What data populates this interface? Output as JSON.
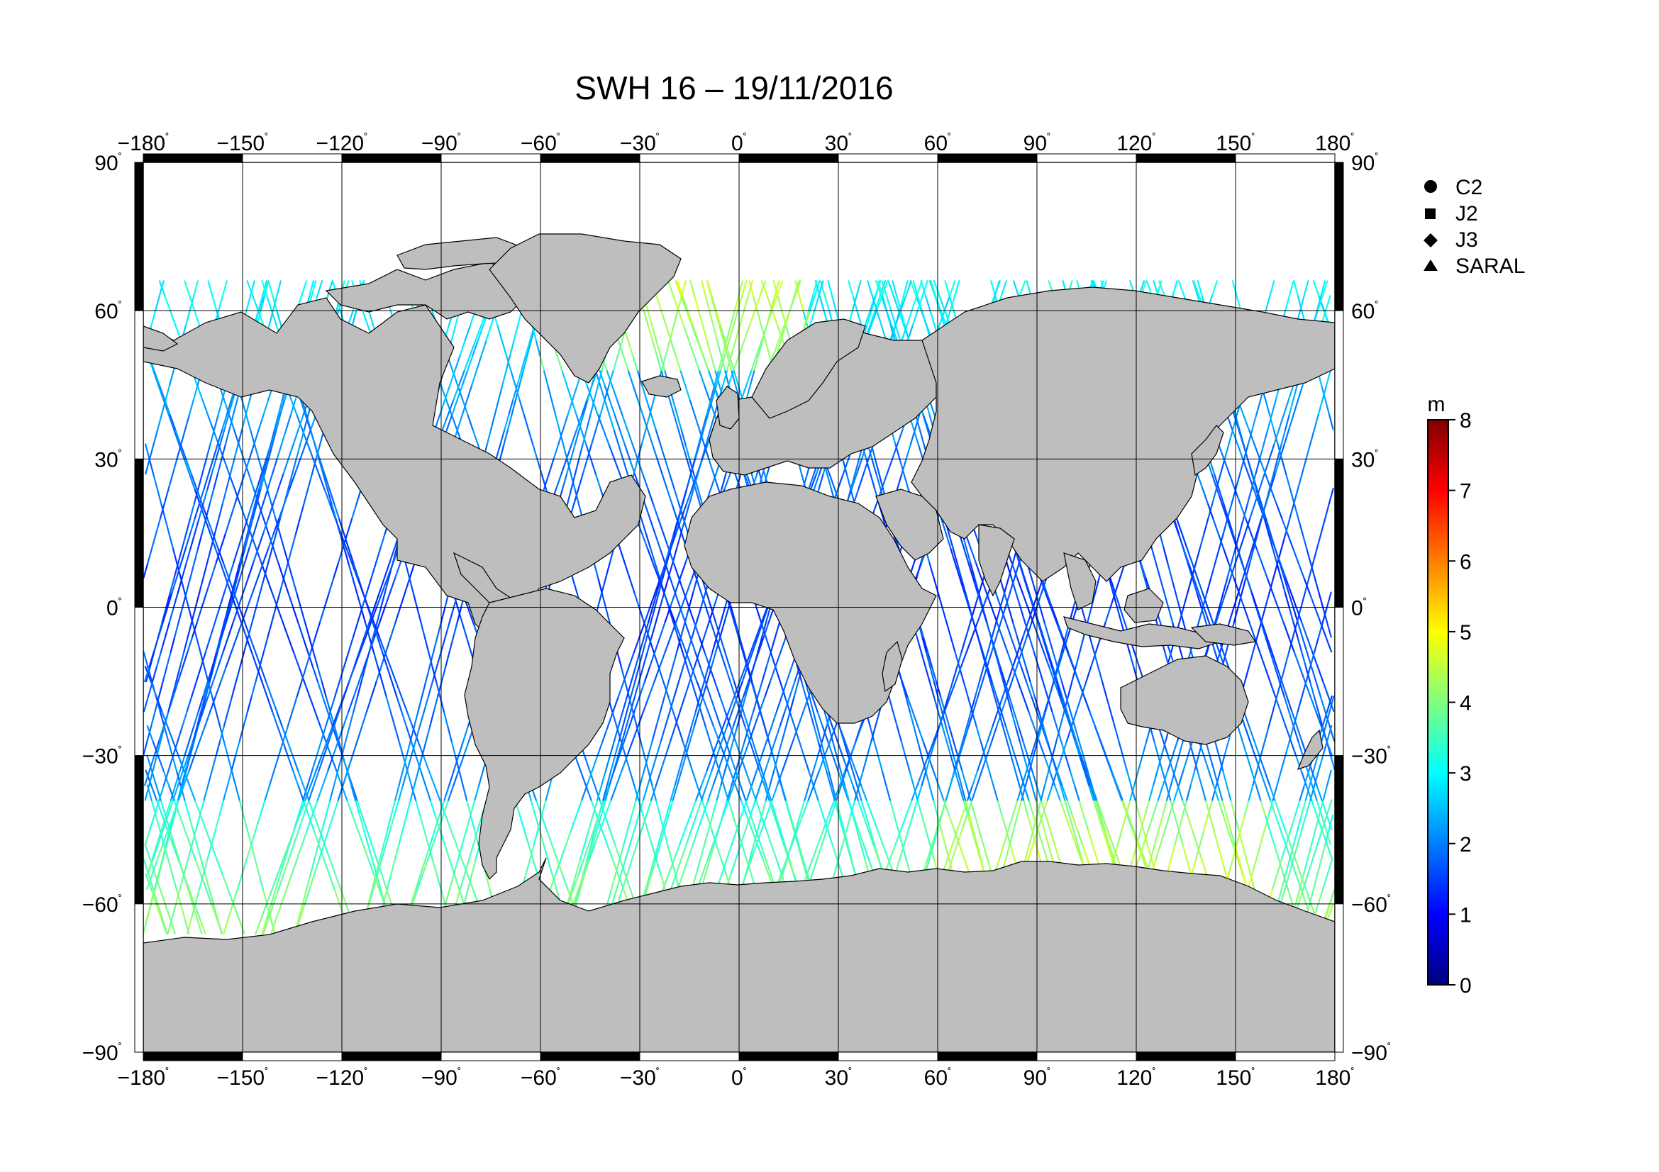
{
  "title": "SWH 16 – 19/11/2016",
  "map": {
    "lon_range": [
      -180,
      180
    ],
    "lat_range": [
      -90,
      90
    ],
    "lon_ticks": [
      "−180",
      "−150",
      "−120",
      "−90",
      "−60",
      "−30",
      "0",
      "30",
      "60",
      "90",
      "120",
      "150",
      "180"
    ],
    "lat_ticks": [
      "90",
      "60",
      "30",
      "0",
      "−30",
      "−60",
      "−90"
    ],
    "lat_tick_values": [
      90,
      60,
      30,
      0,
      -30,
      -60,
      -90
    ],
    "degree_symbol": "˚",
    "land_color": "#bebebe",
    "ocean_color": "#ffffff",
    "grid": true
  },
  "legend": {
    "placement": "top-right",
    "items": [
      {
        "label": "C2",
        "symbol": "circle"
      },
      {
        "label": "J2",
        "symbol": "square"
      },
      {
        "label": "J3",
        "symbol": "diamond"
      },
      {
        "label": "SARAL",
        "symbol": "triangle"
      }
    ]
  },
  "colorbar": {
    "unit": "m",
    "min": 0,
    "max": 8,
    "tick_labels": [
      "0",
      "1",
      "2",
      "3",
      "4",
      "5",
      "6",
      "7",
      "8"
    ],
    "colormap": [
      "#00007f",
      "#0000ff",
      "#007fff",
      "#00ffff",
      "#7fff7f",
      "#ffff00",
      "#ff7f00",
      "#ff0000",
      "#7f0000"
    ]
  }
}
